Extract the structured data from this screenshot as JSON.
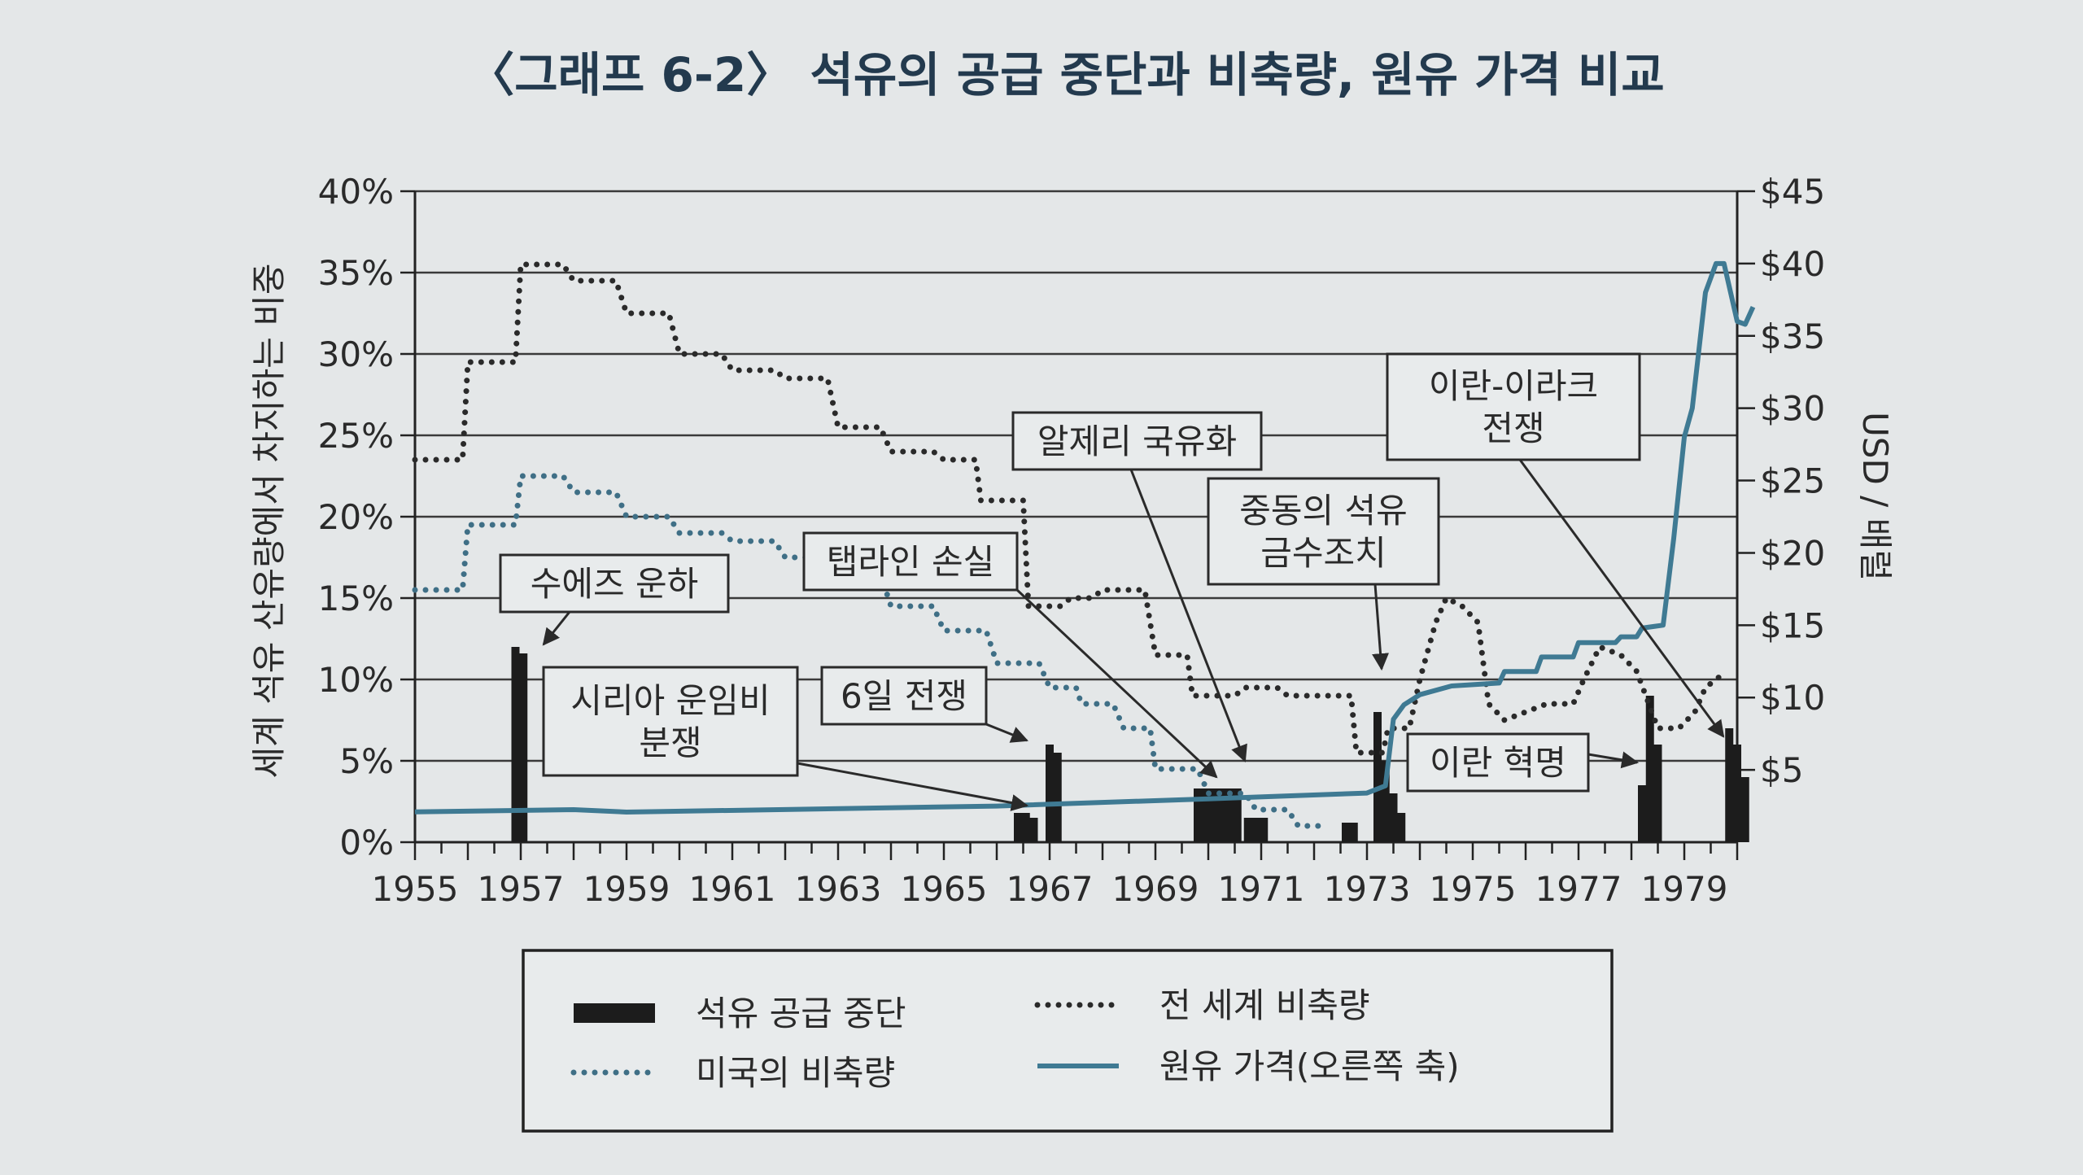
{
  "chart_data": {
    "type": "line",
    "title": "〈그래프 6-2〉 석유의 공급 중단과 비축량, 원유 가격 비교",
    "ylabel_left": "세계 석유 산유량에서 차지하는 비중",
    "ylabel_right": "USD / 배럴",
    "x_ticks": [
      "1955",
      "1957",
      "1959",
      "1961",
      "1963",
      "1965",
      "1967",
      "1969",
      "1971",
      "1973",
      "1975",
      "1977",
      "1979"
    ],
    "y_left_ticks": [
      "0%",
      "5%",
      "10%",
      "15%",
      "20%",
      "25%",
      "30%",
      "35%",
      "40%"
    ],
    "y_right_ticks": [
      "$5",
      "$10",
      "$15",
      "$20",
      "$25",
      "$30",
      "$35",
      "$40",
      "$45"
    ],
    "xlim": [
      1955,
      1980
    ],
    "ylim_left": [
      0,
      40
    ],
    "ylim_right": [
      0,
      45
    ],
    "grid": true,
    "colors": {
      "bars": "#1c1c1c",
      "world": "#2a2a2a",
      "us": "#3f6f86",
      "price": "#3f7a93"
    },
    "series": [
      {
        "name": "전 세계 비축량",
        "style": "dotted",
        "axis": "left",
        "points": [
          [
            1955,
            23.5
          ],
          [
            1955.9,
            23.5
          ],
          [
            1956,
            29.5
          ],
          [
            1956.9,
            29.5
          ],
          [
            1957,
            35.5
          ],
          [
            1957.8,
            35.5
          ],
          [
            1958,
            34.5
          ],
          [
            1958.8,
            34.5
          ],
          [
            1959,
            32.5
          ],
          [
            1959.8,
            32.5
          ],
          [
            1960,
            30
          ],
          [
            1960.8,
            30
          ],
          [
            1961,
            29
          ],
          [
            1961.8,
            29
          ],
          [
            1962,
            28.5
          ],
          [
            1962.8,
            28.5
          ],
          [
            1963,
            25.5
          ],
          [
            1963.8,
            25.5
          ],
          [
            1964,
            24
          ],
          [
            1964.8,
            24
          ],
          [
            1965,
            23.5
          ],
          [
            1965.6,
            23.5
          ],
          [
            1965.7,
            21
          ],
          [
            1966.5,
            21
          ],
          [
            1966.6,
            14.5
          ],
          [
            1967.2,
            14.5
          ],
          [
            1967.4,
            15
          ],
          [
            1967.8,
            15
          ],
          [
            1968,
            15.5
          ],
          [
            1968.8,
            15.5
          ],
          [
            1969,
            11.5
          ],
          [
            1969.6,
            11.5
          ],
          [
            1969.7,
            9
          ],
          [
            1970.5,
            9
          ],
          [
            1970.7,
            9.5
          ],
          [
            1971.3,
            9.5
          ],
          [
            1971.5,
            9
          ],
          [
            1971.9,
            9
          ],
          [
            1972.1,
            9
          ],
          [
            1972.7,
            9
          ],
          [
            1972.8,
            5.5
          ],
          [
            1973.3,
            5.5
          ],
          [
            1973.4,
            7
          ],
          [
            1973.8,
            7
          ],
          [
            1974,
            10
          ],
          [
            1974.3,
            13.5
          ],
          [
            1974.5,
            15
          ],
          [
            1974.8,
            14.5
          ],
          [
            1975.1,
            13.5
          ],
          [
            1975.3,
            8.5
          ],
          [
            1975.6,
            7.5
          ],
          [
            1976,
            8
          ],
          [
            1976.4,
            8.5
          ],
          [
            1976.9,
            8.5
          ],
          [
            1977.1,
            10
          ],
          [
            1977.4,
            12
          ],
          [
            1977.8,
            11.5
          ],
          [
            1978.1,
            10.5
          ],
          [
            1978.5,
            7
          ],
          [
            1978.9,
            7
          ],
          [
            1979.2,
            8
          ],
          [
            1979.4,
            9.5
          ],
          [
            1979.8,
            10.5
          ]
        ]
      },
      {
        "name": "미국의 비축량",
        "style": "dotted",
        "axis": "left",
        "points": [
          [
            1955,
            15.5
          ],
          [
            1955.9,
            15.5
          ],
          [
            1956,
            19.5
          ],
          [
            1956.9,
            19.5
          ],
          [
            1957,
            22.5
          ],
          [
            1957.8,
            22.5
          ],
          [
            1958,
            21.5
          ],
          [
            1958.8,
            21.5
          ],
          [
            1959,
            20
          ],
          [
            1959.8,
            20
          ],
          [
            1960,
            19
          ],
          [
            1960.8,
            19
          ],
          [
            1961,
            18.5
          ],
          [
            1961.8,
            18.5
          ],
          [
            1962,
            17.5
          ],
          [
            1962.8,
            17.5
          ],
          [
            1963,
            16.5
          ],
          [
            1963.8,
            16.5
          ],
          [
            1964,
            14.5
          ],
          [
            1964.8,
            14.5
          ],
          [
            1965,
            13
          ],
          [
            1965.8,
            13
          ],
          [
            1966,
            11
          ],
          [
            1966.8,
            11
          ],
          [
            1967,
            9.5
          ],
          [
            1967.5,
            9.5
          ],
          [
            1967.6,
            8.5
          ],
          [
            1968.2,
            8.5
          ],
          [
            1968.4,
            7
          ],
          [
            1968.9,
            7
          ],
          [
            1969,
            4.5
          ],
          [
            1969.8,
            4.5
          ],
          [
            1970,
            3
          ],
          [
            1970.7,
            3
          ],
          [
            1970.9,
            2
          ],
          [
            1971.5,
            2
          ],
          [
            1971.7,
            1
          ],
          [
            1972.2,
            1
          ]
        ]
      },
      {
        "name": "원유 가격(오른쪽 축)",
        "style": "solid",
        "axis": "right",
        "points": [
          [
            1955,
            2.1
          ],
          [
            1958,
            2.25
          ],
          [
            1959,
            2.08
          ],
          [
            1966,
            2.5
          ],
          [
            1970,
            3.0
          ],
          [
            1973,
            3.4
          ],
          [
            1973.35,
            3.9
          ],
          [
            1973.5,
            8.5
          ],
          [
            1973.7,
            9.5
          ],
          [
            1974,
            10.2
          ],
          [
            1974.6,
            10.8
          ],
          [
            1975.5,
            11.0
          ],
          [
            1975.6,
            11.8
          ],
          [
            1976.2,
            11.8
          ],
          [
            1976.3,
            12.8
          ],
          [
            1976.9,
            12.8
          ],
          [
            1977,
            13.8
          ],
          [
            1977.7,
            13.8
          ],
          [
            1977.8,
            14.2
          ],
          [
            1978.1,
            14.2
          ],
          [
            1978.2,
            14.8
          ],
          [
            1978.6,
            15.0
          ],
          [
            1978.8,
            21
          ],
          [
            1979.0,
            28
          ],
          [
            1979.15,
            30
          ],
          [
            1979.4,
            38
          ],
          [
            1979.6,
            40
          ],
          [
            1979.75,
            40
          ],
          [
            1980.0,
            36
          ],
          [
            1980.15,
            35.8
          ],
          [
            1980.3,
            37
          ]
        ]
      }
    ],
    "bars": {
      "name": "석유 공급 중단",
      "axis": "left",
      "items": [
        [
          1956.9,
          12
        ],
        [
          1957.05,
          11.6
        ],
        [
          1966.4,
          1.8
        ],
        [
          1966.55,
          1.8
        ],
        [
          1966.7,
          1.5
        ],
        [
          1967.0,
          6
        ],
        [
          1967.15,
          5.5
        ],
        [
          1969.8,
          3.3
        ],
        [
          1969.95,
          3.3
        ],
        [
          1970.1,
          3.3
        ],
        [
          1970.25,
          3.3
        ],
        [
          1970.4,
          3.3
        ],
        [
          1970.55,
          3.3
        ],
        [
          1970.75,
          1.5
        ],
        [
          1970.9,
          1.5
        ],
        [
          1971.05,
          1.5
        ],
        [
          1972.6,
          1.2
        ],
        [
          1972.75,
          1.2
        ],
        [
          1973.2,
          8
        ],
        [
          1973.35,
          5
        ],
        [
          1973.5,
          3
        ],
        [
          1973.65,
          1.8
        ],
        [
          1978.2,
          3.5
        ],
        [
          1978.35,
          9
        ],
        [
          1978.5,
          6
        ],
        [
          1979.85,
          7
        ],
        [
          1980.0,
          6
        ],
        [
          1980.15,
          4
        ]
      ]
    },
    "annotations": [
      {
        "key": "suez",
        "label": [
          "수에즈 운하"
        ]
      },
      {
        "key": "syria",
        "label": [
          "시리아 운임비",
          "분쟁"
        ]
      },
      {
        "key": "tapline",
        "label": [
          "탭라인 손실"
        ]
      },
      {
        "key": "sixday",
        "label": [
          "6일 전쟁"
        ]
      },
      {
        "key": "algeria",
        "label": [
          "알제리 국유화"
        ]
      },
      {
        "key": "embargo",
        "label": [
          "중동의 석유",
          "금수조치"
        ]
      },
      {
        "key": "iranrev",
        "label": [
          "이란 혁명"
        ]
      },
      {
        "key": "iraniraq",
        "label": [
          "이란-이라크",
          "전쟁"
        ]
      }
    ],
    "legend": {
      "placement": "bottom",
      "items": [
        {
          "label": "석유 공급 중단",
          "style": "bar"
        },
        {
          "label": "전 세계 비축량",
          "style": "dotted-dark"
        },
        {
          "label": "미국의 비축량",
          "style": "dotted-blue"
        },
        {
          "label": "원유 가격(오른쪽 축)",
          "style": "solid-blue"
        }
      ]
    }
  }
}
